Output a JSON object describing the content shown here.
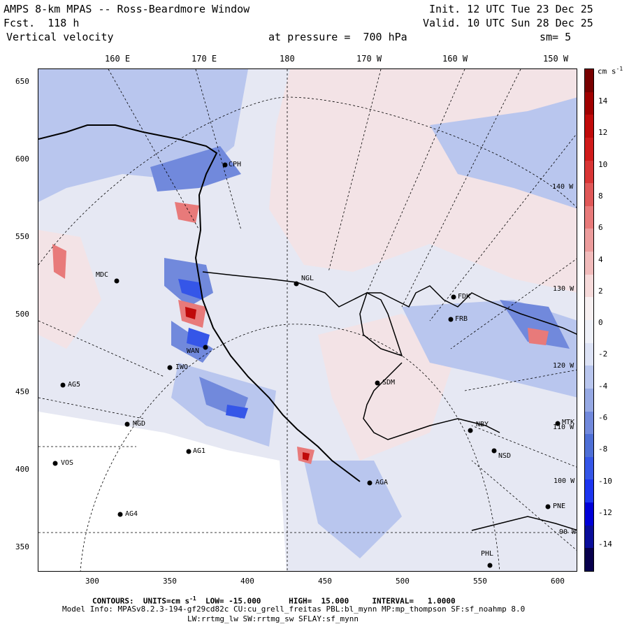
{
  "header": {
    "line1_left": "AMPS 8-km MPAS -- Ross-Beardmore Window",
    "line2_left": "Fcst.  118 h",
    "line3_left": "Vertical velocity",
    "line1_right": "Init. 12 UTC Tue 23 Dec 25",
    "line2_right": "Valid. 10 UTC Sun 28 Dec 25",
    "pressure_label": "at pressure =  700 hPa",
    "smoothing": "sm= 5"
  },
  "top_axis": [
    "160 E",
    "170 E",
    "180",
    "170 W",
    "160 W",
    "150 W"
  ],
  "left_axis": [
    "650",
    "600",
    "550",
    "500",
    "450",
    "400",
    "350"
  ],
  "bottom_axis": [
    "300",
    "350",
    "400",
    "450",
    "500",
    "550",
    "600"
  ],
  "right_inner_labels": [
    "140 W",
    "130 W",
    "120 W",
    "110 W",
    "100 W",
    "90 W"
  ],
  "colorbar": {
    "units": "cm s",
    "units_exp": "-1",
    "labels": [
      "14",
      "12",
      "10",
      "8",
      "6",
      "4",
      "2",
      "0",
      "-2",
      "-4",
      "-6",
      "-8",
      "-10",
      "-12",
      "-14"
    ],
    "colors": [
      "#08004d",
      "#0a0d9a",
      "#0000d8",
      "#1c35f0",
      "#3556e8",
      "#4e6fd6",
      "#7189dc",
      "#96a9e4",
      "#b9c6ee",
      "#dce2f5",
      "#eef0f8",
      "#f7f0f1",
      "#f6dada",
      "#f1bbbb",
      "#ec9c9c",
      "#e87a7a",
      "#e05858",
      "#d93535",
      "#d01a1a",
      "#c00a0a",
      "#a00000",
      "#780000"
    ]
  },
  "stations": [
    {
      "name": "CPH"
    },
    {
      "name": "MDC"
    },
    {
      "name": "NGL"
    },
    {
      "name": "FDK"
    },
    {
      "name": "FRB"
    },
    {
      "name": "WAN"
    },
    {
      "name": "IWO"
    },
    {
      "name": "AG5"
    },
    {
      "name": "SDM"
    },
    {
      "name": "MGD"
    },
    {
      "name": "NBY"
    },
    {
      "name": "MTK"
    },
    {
      "name": "AG1"
    },
    {
      "name": "NSD"
    },
    {
      "name": "VOS"
    },
    {
      "name": "AGA"
    },
    {
      "name": "AG4"
    },
    {
      "name": "PNE"
    },
    {
      "name": "PHL"
    }
  ],
  "footer": {
    "contours_prefix": "CONTOURS:  UNITS=cm s",
    "contours_exp": "-1",
    "contours_rest": "  LOW= -15.000      HIGH=  15.000     INTERVAL=   1.0000",
    "model_info": "Model Info: MPASv8.2.3-194-gf29cd82c CU:cu_grell_freitas PBL:bl_mynn MP:mp_thompson SF:sf_noahmp 8.0",
    "model_info2": "LW:rrtmg_lw SW:rrtmg_sw SFLAY:sf_mynn"
  }
}
